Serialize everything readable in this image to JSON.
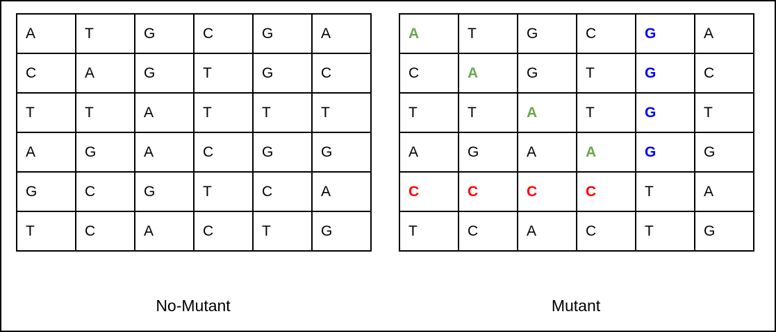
{
  "colors": {
    "green": "#6aa84f",
    "blue": "#0000ff",
    "red": "#ff0000",
    "black": "#000000"
  },
  "panels": [
    {
      "id": "no-mutant",
      "caption": "No-Mutant",
      "rows": [
        [
          {
            "t": "A"
          },
          {
            "t": "T"
          },
          {
            "t": "G"
          },
          {
            "t": "C"
          },
          {
            "t": "G"
          },
          {
            "t": "A"
          }
        ],
        [
          {
            "t": "C"
          },
          {
            "t": "A"
          },
          {
            "t": "G"
          },
          {
            "t": "T"
          },
          {
            "t": "G"
          },
          {
            "t": "C"
          }
        ],
        [
          {
            "t": "T"
          },
          {
            "t": "T"
          },
          {
            "t": "A"
          },
          {
            "t": "T"
          },
          {
            "t": "T"
          },
          {
            "t": "T"
          }
        ],
        [
          {
            "t": "A"
          },
          {
            "t": "G"
          },
          {
            "t": "A"
          },
          {
            "t": "C"
          },
          {
            "t": "G"
          },
          {
            "t": "G"
          }
        ],
        [
          {
            "t": "G"
          },
          {
            "t": "C"
          },
          {
            "t": "G"
          },
          {
            "t": "T"
          },
          {
            "t": "C"
          },
          {
            "t": "A"
          }
        ],
        [
          {
            "t": "T"
          },
          {
            "t": "C"
          },
          {
            "t": "A"
          },
          {
            "t": "C"
          },
          {
            "t": "T"
          },
          {
            "t": "G"
          }
        ]
      ]
    },
    {
      "id": "mutant",
      "caption": "Mutant",
      "rows": [
        [
          {
            "t": "A",
            "c": "green"
          },
          {
            "t": "T"
          },
          {
            "t": "G"
          },
          {
            "t": "C"
          },
          {
            "t": "G",
            "c": "blue"
          },
          {
            "t": "A"
          }
        ],
        [
          {
            "t": "C"
          },
          {
            "t": "A",
            "c": "green"
          },
          {
            "t": "G"
          },
          {
            "t": "T"
          },
          {
            "t": "G",
            "c": "blue"
          },
          {
            "t": "C"
          }
        ],
        [
          {
            "t": "T"
          },
          {
            "t": "T"
          },
          {
            "t": "A",
            "c": "green"
          },
          {
            "t": "T"
          },
          {
            "t": "G",
            "c": "blue"
          },
          {
            "t": "T"
          }
        ],
        [
          {
            "t": "A"
          },
          {
            "t": "G"
          },
          {
            "t": "A"
          },
          {
            "t": "A",
            "c": "green"
          },
          {
            "t": "G",
            "c": "blue"
          },
          {
            "t": "G"
          }
        ],
        [
          {
            "t": "C",
            "c": "red"
          },
          {
            "t": "C",
            "c": "red"
          },
          {
            "t": "C",
            "c": "red"
          },
          {
            "t": "C",
            "c": "red"
          },
          {
            "t": "T"
          },
          {
            "t": "A"
          }
        ],
        [
          {
            "t": "T"
          },
          {
            "t": "C"
          },
          {
            "t": "A"
          },
          {
            "t": "C"
          },
          {
            "t": "T"
          },
          {
            "t": "G"
          }
        ]
      ]
    }
  ]
}
